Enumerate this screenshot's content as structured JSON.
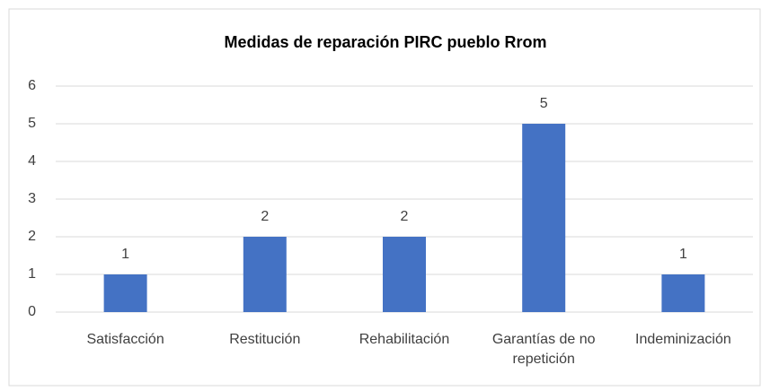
{
  "chart_data": {
    "type": "bar",
    "title": "Medidas de reparación PIRC pueblo Rrom",
    "categories": [
      "Satisfacción",
      "Restitución",
      "Rehabilitación",
      "Garantías de no repetición",
      "Indeminización"
    ],
    "values": [
      1,
      2,
      2,
      5,
      1
    ],
    "color": "#4472c4",
    "ylim": [
      0,
      6
    ],
    "yticks": [
      0,
      1,
      2,
      3,
      4,
      5,
      6
    ],
    "grid": true
  }
}
